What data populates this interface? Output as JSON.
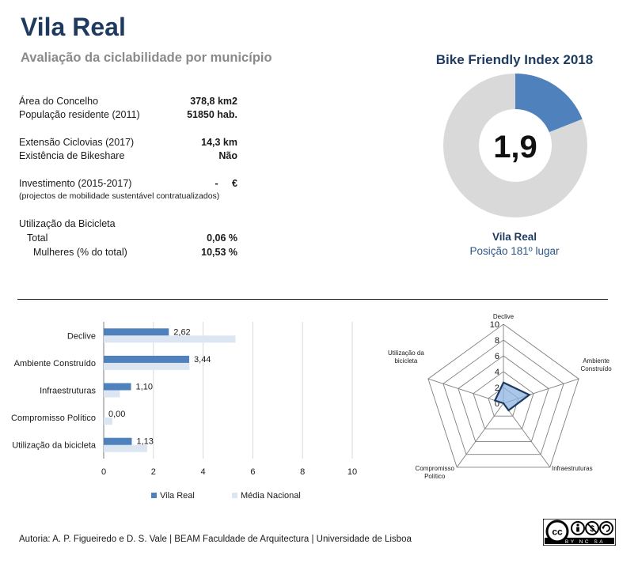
{
  "header": {
    "title": "Vila Real",
    "subtitle": "Avaliação da ciclabilidade por município"
  },
  "stats": {
    "area": {
      "label": "Área do Concelho",
      "value": "378,8 km2"
    },
    "population": {
      "label": "População residente (2011)",
      "value": "51850 hab."
    },
    "cycleways": {
      "label": "Extensão Ciclovias (2017)",
      "value": "14,3 km"
    },
    "bikeshare": {
      "label": "Existência de Bikeshare",
      "value": "Não"
    },
    "investment": {
      "label": "Investimento (2015-2017)",
      "value": "-     €"
    },
    "investment_note": "(projectos de mobilidade sustentável contratualizados)",
    "usage_title": "Utilização da Bicicleta",
    "usage_total": {
      "label": "Total",
      "value": "0,06 %"
    },
    "usage_women": {
      "label": "Mulheres (% do total)",
      "value": "10,53 %"
    }
  },
  "bfi": {
    "title": "Bike Friendly Index 2018",
    "score": "1,9",
    "fraction": 0.19,
    "city": "Vila Real",
    "rank": "Posição 181º lugar",
    "colors": {
      "filled": "#4f81bd",
      "empty": "#d9d9d9"
    }
  },
  "chart_data": [
    {
      "type": "bar",
      "orientation": "horizontal",
      "categories": [
        "Declive",
        "Ambiente Construído",
        "Infraestruturas",
        "Compromisso Político",
        "Utilização da bicicleta"
      ],
      "series": [
        {
          "name": "Vila Real",
          "values": [
            2.62,
            3.44,
            1.1,
            0.0,
            1.13
          ],
          "labels": [
            "2,62",
            "3,44",
            "1,10",
            "0,00",
            "1,13"
          ],
          "color": "#4f81bd"
        },
        {
          "name": "Média Nacional",
          "values": [
            5.3,
            3.45,
            0.65,
            0.35,
            1.75
          ],
          "color": "#dce6f2"
        }
      ],
      "xlim": [
        0,
        10
      ],
      "xticks": [
        "0",
        "2",
        "4",
        "6",
        "8",
        "10"
      ],
      "grid": true,
      "legend": "bottom"
    },
    {
      "type": "radar",
      "axes": [
        "Declive",
        "Ambiente Construído",
        "Infraestruturas",
        "Compromisso Político",
        "Utilização da bicicleta"
      ],
      "axis_labels": [
        [
          "Declive"
        ],
        [
          "Ambiente",
          "Construído"
        ],
        [
          "Infraestruturas"
        ],
        [
          "Compromisso",
          "Político"
        ],
        [
          "Utilização da",
          "bicicleta"
        ]
      ],
      "values": [
        2.62,
        3.44,
        1.1,
        0.0,
        1.13
      ],
      "rlim": [
        0,
        10
      ],
      "rticks": [
        "0",
        "2",
        "4",
        "6",
        "8",
        "10"
      ],
      "color": "#1f3a5f",
      "fill": "#8eb4e3"
    }
  ],
  "footer": {
    "credit": "Autoria: A. P. Figueiredo e D. S. Vale | BEAM Faculdade de Arquitectura | Universidade de Lisboa",
    "license": "BY NC SA"
  }
}
